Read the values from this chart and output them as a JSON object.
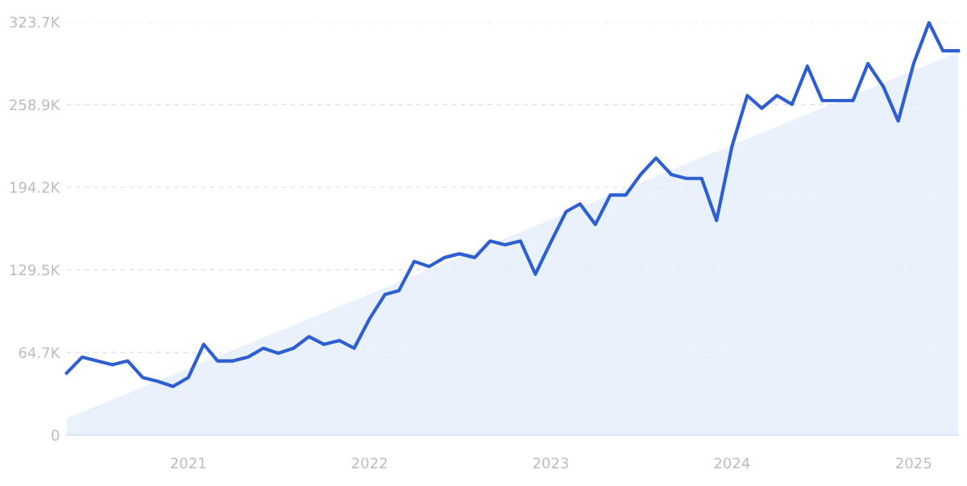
{
  "chart_data": {
    "type": "line",
    "x": [
      "2020-05",
      "2020-06",
      "2020-07",
      "2020-08",
      "2020-09",
      "2020-10",
      "2020-11",
      "2020-12",
      "2021-01",
      "2021-02",
      "2021-03",
      "2021-04",
      "2021-05",
      "2021-06",
      "2021-07",
      "2021-08",
      "2021-09",
      "2021-10",
      "2021-11",
      "2021-12",
      "2022-01",
      "2022-02",
      "2022-03",
      "2022-04",
      "2022-05",
      "2022-06",
      "2022-07",
      "2022-08",
      "2022-09",
      "2022-10",
      "2022-11",
      "2022-12",
      "2023-01",
      "2023-02",
      "2023-03",
      "2023-04",
      "2023-05",
      "2023-06",
      "2023-07",
      "2023-08",
      "2023-09",
      "2023-10",
      "2023-11",
      "2023-12",
      "2024-01",
      "2024-02",
      "2024-03",
      "2024-04",
      "2024-05",
      "2024-06",
      "2024-07",
      "2024-08",
      "2024-09",
      "2024-10",
      "2024-11",
      "2024-12",
      "2025-01",
      "2025-02",
      "2025-03",
      "2025-04"
    ],
    "series": [
      {
        "type": "area",
        "x": [
          "2020-05",
          "2025-04"
        ],
        "values": [
          13,
          300
        ],
        "color": "#e3eefc"
      },
      {
        "color": "#2d5fd3",
        "values": [
          48.5,
          61,
          58,
          55,
          58,
          45,
          42,
          38,
          45,
          71,
          58,
          58,
          61,
          68,
          64,
          68,
          77,
          71,
          74,
          68,
          91,
          110,
          113,
          136,
          132,
          139,
          142,
          139,
          152,
          149,
          152,
          126,
          151,
          175,
          181,
          165,
          188,
          188,
          204,
          217,
          204,
          201,
          201,
          168,
          226,
          266,
          256,
          266,
          259,
          289,
          262,
          262,
          262,
          291,
          273,
          246,
          291,
          323,
          301,
          301
        ]
      }
    ],
    "xlim": [
      "2020-05",
      "2025-04"
    ],
    "xticks": [
      {
        "value": "2021-01",
        "label": "2021"
      },
      {
        "value": "2022-01",
        "label": "2022"
      },
      {
        "value": "2023-01",
        "label": "2023"
      },
      {
        "value": "2024-01",
        "label": "2024"
      },
      {
        "value": "2025-01",
        "label": "2025"
      }
    ],
    "ylim": [
      0,
      323.7
    ],
    "yticks": [
      0,
      {
        "value": 64.7,
        "label": "64.7K"
      },
      {
        "value": 129.5,
        "label": "129.5K"
      },
      {
        "value": 194.2,
        "label": "194.2K"
      },
      {
        "value": 258.9,
        "label": "258.9K"
      },
      {
        "value": 323.7,
        "label": "323.7K"
      }
    ],
    "grid": "y",
    "marker": "none",
    "line_style": "solid"
  }
}
